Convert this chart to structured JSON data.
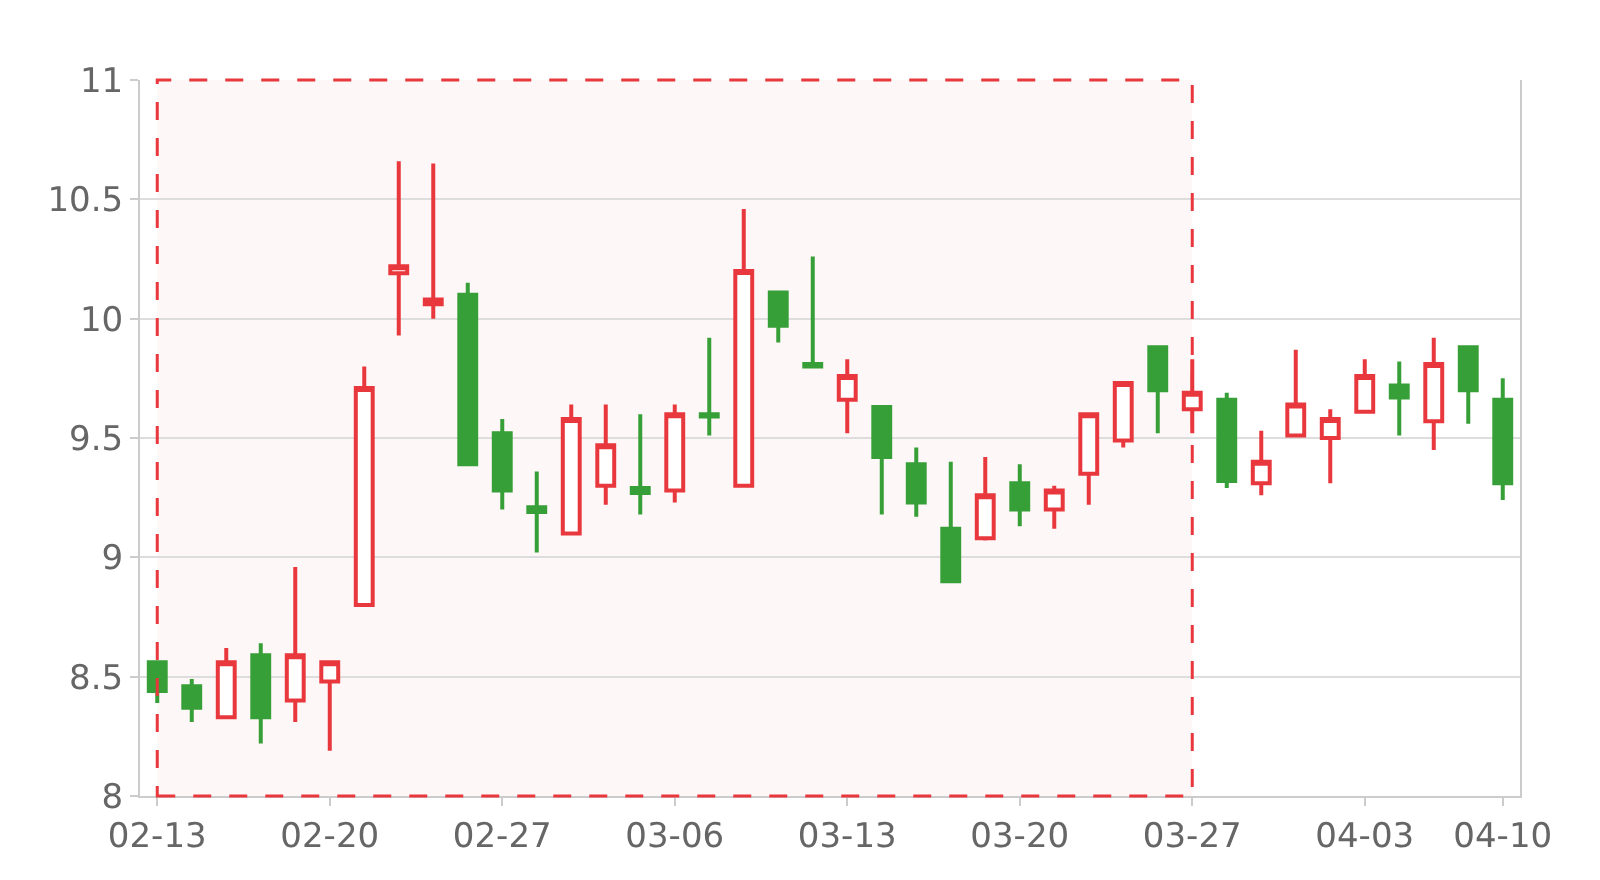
{
  "chart_data": {
    "type": "candlestick",
    "categories": [
      "02-13",
      null,
      null,
      null,
      null,
      "02-20",
      null,
      null,
      null,
      null,
      "02-27",
      null,
      null,
      null,
      null,
      "03-06",
      null,
      null,
      null,
      null,
      "03-13",
      null,
      null,
      null,
      null,
      "03-20",
      null,
      null,
      null,
      null,
      "03-27",
      null,
      null,
      null,
      null,
      "04-03",
      null,
      null,
      null,
      "04-10"
    ],
    "ohlc": [
      [
        8.56,
        8.56,
        8.39,
        8.44
      ],
      [
        8.46,
        8.49,
        8.31,
        8.37
      ],
      [
        8.33,
        8.62,
        8.33,
        8.56
      ],
      [
        8.59,
        8.64,
        8.22,
        8.33
      ],
      [
        8.4,
        8.96,
        8.31,
        8.59
      ],
      [
        8.48,
        8.56,
        8.19,
        8.56
      ],
      [
        8.8,
        9.8,
        8.8,
        9.71
      ],
      [
        10.19,
        10.66,
        9.93,
        10.22
      ],
      [
        10.06,
        10.65,
        10.0,
        10.08
      ],
      [
        10.1,
        10.15,
        9.39,
        9.39
      ],
      [
        9.52,
        9.58,
        9.2,
        9.28
      ],
      [
        9.21,
        9.36,
        9.02,
        9.19
      ],
      [
        9.1,
        9.64,
        9.1,
        9.58
      ],
      [
        9.3,
        9.64,
        9.22,
        9.47
      ],
      [
        9.29,
        9.6,
        9.18,
        9.27
      ],
      [
        9.28,
        9.64,
        9.23,
        9.6
      ],
      [
        9.6,
        9.92,
        9.51,
        9.59
      ],
      [
        9.3,
        10.46,
        9.3,
        10.2
      ],
      [
        10.11,
        10.11,
        9.9,
        9.97
      ],
      [
        9.81,
        10.26,
        9.8,
        9.8
      ],
      [
        9.66,
        9.83,
        9.52,
        9.76
      ],
      [
        9.63,
        9.63,
        9.18,
        9.42
      ],
      [
        9.39,
        9.46,
        9.17,
        9.23
      ],
      [
        9.12,
        9.4,
        8.9,
        8.9
      ],
      [
        9.08,
        9.42,
        9.07,
        9.26
      ],
      [
        9.31,
        9.39,
        9.13,
        9.2
      ],
      [
        9.2,
        9.3,
        9.12,
        9.28
      ],
      [
        9.35,
        9.6,
        9.22,
        9.6
      ],
      [
        9.49,
        9.73,
        9.46,
        9.73
      ],
      [
        9.88,
        9.88,
        9.52,
        9.7
      ],
      [
        9.62,
        9.83,
        9.52,
        9.69
      ],
      [
        9.66,
        9.69,
        9.29,
        9.32
      ],
      [
        9.31,
        9.53,
        9.26,
        9.4
      ],
      [
        9.51,
        9.87,
        9.51,
        9.64
      ],
      [
        9.5,
        9.62,
        9.31,
        9.58
      ],
      [
        9.61,
        9.83,
        9.61,
        9.76
      ],
      [
        9.72,
        9.82,
        9.51,
        9.67
      ],
      [
        9.57,
        9.92,
        9.45,
        9.81
      ],
      [
        9.88,
        9.88,
        9.56,
        9.7
      ],
      [
        9.66,
        9.75,
        9.24,
        9.31
      ]
    ],
    "colors": [
      "#379f37",
      "#379f37",
      "#e8383d",
      "#379f37",
      "#e8383d",
      "#e8383d",
      "#e8383d",
      "#e8383d",
      "#e8383d",
      "#379f37",
      "#379f37",
      "#379f37",
      "#e8383d",
      "#e8383d",
      "#379f37",
      "#e8383d",
      "#379f37",
      "#e8383d",
      "#379f37",
      "#379f37",
      "#e8383d",
      "#379f37",
      "#379f37",
      "#379f37",
      "#e8383d",
      "#379f37",
      "#e8383d",
      "#e8383d",
      "#e8383d",
      "#379f37",
      "#e8383d",
      "#379f37",
      "#e8383d",
      "#e8383d",
      "#e8383d",
      "#e8383d",
      "#379f37",
      "#e8383d",
      "#379f37",
      "#379f37"
    ],
    "ylim": [
      8,
      11
    ],
    "yticks": [
      8,
      8.5,
      9,
      9.5,
      10,
      10.5,
      11
    ],
    "grid": "y",
    "bands": [
      {
        "axis": "x",
        "from": "02-13",
        "to": "03-27",
        "color": "#e8383d"
      }
    ]
  }
}
